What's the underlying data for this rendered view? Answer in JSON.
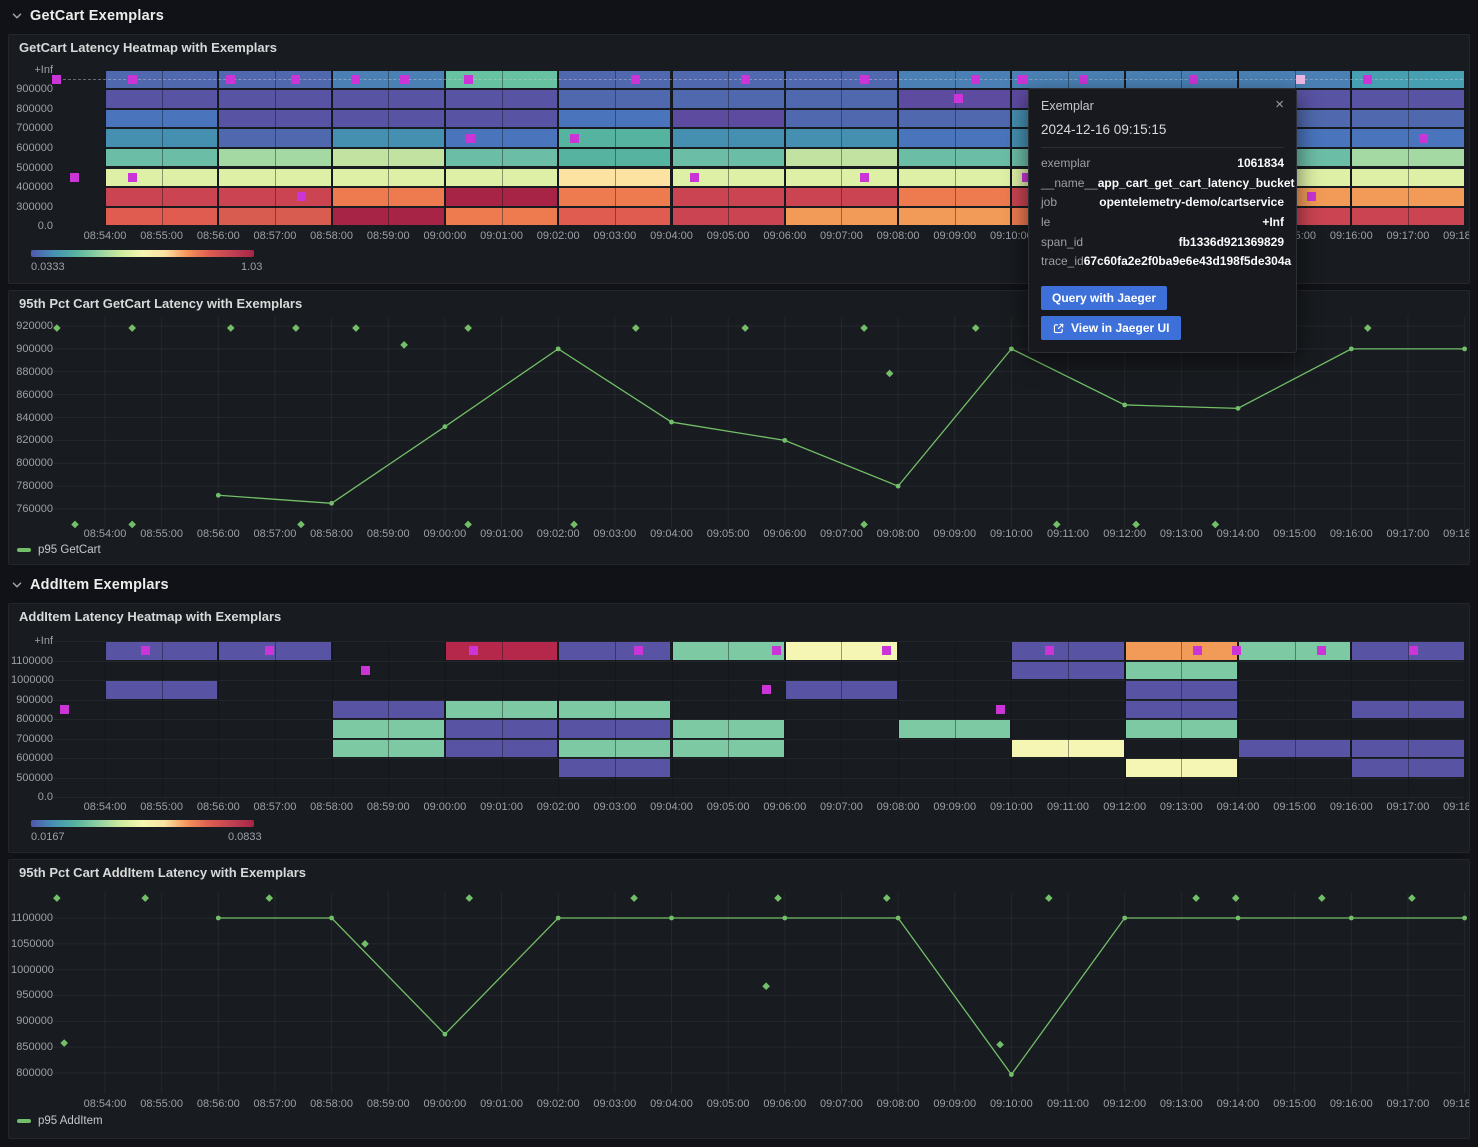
{
  "sections": [
    {
      "title": "GetCart Exemplars"
    },
    {
      "title": "AddItem Exemplars"
    }
  ],
  "time_labels": [
    "08:54:00",
    "08:55:00",
    "08:56:00",
    "08:57:00",
    "08:58:00",
    "08:59:00",
    "09:00:00",
    "09:01:00",
    "09:02:00",
    "09:03:00",
    "09:04:00",
    "09:05:00",
    "09:06:00",
    "09:07:00",
    "09:08:00",
    "09:09:00",
    "09:10:00",
    "09:11:00",
    "09:12:00",
    "09:13:00",
    "09:14:00",
    "09:15:00",
    "09:16:00",
    "09:17:00",
    "09:18:00"
  ],
  "palette": {
    "SB": "#5069ae",
    "BT": "#4a80b4",
    "ST": "#4a74bc",
    "TB": "#458fb0",
    "TE": "#47a0b2",
    "T2": "#56b39f",
    "SG": "#6cbda6",
    "GN": "#66c2a0",
    "S2": "#7dc9a4",
    "LG": "#a5d9a3",
    "YG": "#c2e2a2",
    "PY": "#ddf0a6",
    "P2": "#f6f6b4",
    "PC": "#fce3a2",
    "O3": "#f29a57",
    "OR": "#ee7a50",
    "O2": "#e05c50",
    "R2": "#d95c50",
    "RD": "#ca4452",
    "CR": "#a82446",
    "CA": "#b5284b",
    "PU": "#5853a3",
    "PD": "#5d4ba0"
  },
  "exemplar_color": "#cb35d8",
  "exemplar_highlight_color": "#eab9e4",
  "line_color": "#73bf69",
  "heatmap_getcart": {
    "title": "GetCart Latency Heatmap with Exemplars",
    "y_labels": [
      "+Inf",
      "900000",
      "800000",
      "700000",
      "600000",
      "500000",
      "400000",
      "300000",
      "0.0"
    ],
    "colorbar": {
      "min": "0.0333",
      "max": "1.03"
    },
    "grid": [
      [
        "SB",
        "SB",
        "BT",
        "GN",
        "SB",
        "SB",
        "SB",
        "BT",
        "BT",
        "BT",
        "BT",
        "TE"
      ],
      [
        "PU",
        "PU",
        "PU",
        "PU",
        "SB",
        "SB",
        "SB",
        "PD",
        "PD",
        "SB",
        "PU",
        "PU"
      ],
      [
        "ST",
        "PU",
        "PU",
        "PU",
        "ST",
        "PD",
        "SB",
        "SB",
        "TB",
        "PU",
        "SB",
        "SB"
      ],
      [
        "TB",
        "SB",
        "TB",
        "ST",
        "T2",
        "TB",
        "TB",
        "ST",
        "TB",
        "TB",
        "ST",
        "ST"
      ],
      [
        "SG",
        "LG",
        "YG",
        "SG",
        "T2",
        "SG",
        "YG",
        "SG",
        "SG",
        "SG",
        "SG",
        "LG"
      ],
      [
        "PY",
        "PY",
        "PY",
        "PY",
        "PC",
        "PY",
        "PY",
        "PY",
        "PY",
        "PY",
        "PY",
        "PY"
      ],
      [
        "RD",
        "RD",
        "OR",
        "CR",
        "OR",
        "RD",
        "RD",
        "OR",
        "RD",
        "OR",
        "O3",
        "O3"
      ],
      [
        "O2",
        "R2",
        "CR",
        "OR",
        "O2",
        "RD",
        "O3",
        "O3",
        "OR",
        "RD",
        "RD",
        "RD"
      ]
    ],
    "exemplars": [
      {
        "t": -0.85,
        "r": 0
      },
      {
        "t": 0.48,
        "r": 0
      },
      {
        "t": 2.22,
        "r": 0
      },
      {
        "t": 3.37,
        "r": 0
      },
      {
        "t": 4.43,
        "r": 0
      },
      {
        "t": 5.28,
        "r": 0
      },
      {
        "t": 6.41,
        "r": 0
      },
      {
        "t": 9.37,
        "r": 0
      },
      {
        "t": 11.3,
        "r": 0
      },
      {
        "t": 13.4,
        "r": 0
      },
      {
        "t": 15.37,
        "r": 0
      },
      {
        "t": 16.19,
        "r": 0
      },
      {
        "t": 17.28,
        "r": 0
      },
      {
        "t": 19.22,
        "r": 0
      },
      {
        "t": 22.29,
        "r": 0
      },
      {
        "t": -0.53,
        "r": 5
      },
      {
        "t": 0.48,
        "r": 5
      },
      {
        "t": 3.46,
        "r": 6
      },
      {
        "t": 6.46,
        "r": 3
      },
      {
        "t": 8.28,
        "r": 3
      },
      {
        "t": 10.4,
        "r": 5
      },
      {
        "t": 13.4,
        "r": 5
      },
      {
        "t": 15.07,
        "r": 1
      },
      {
        "t": 16.26,
        "r": 5
      },
      {
        "t": 21.3,
        "r": 6
      },
      {
        "t": 23.28,
        "r": 3
      }
    ],
    "highlighted_exemplar": {
      "t": 21.11,
      "r": 0
    }
  },
  "latency_getcart": {
    "title": "95th Pct Cart GetCart Latency with Exemplars",
    "legend": "p95 GetCart",
    "y_ticks": [
      "920000",
      "900000",
      "880000",
      "860000",
      "840000",
      "820000",
      "800000",
      "780000",
      "760000"
    ],
    "values": [
      772000,
      765000,
      832000,
      900000,
      836000,
      820000,
      780000,
      900000,
      851000,
      848000,
      900000,
      900000
    ],
    "diamonds": [
      {
        "t": -0.85,
        "v": 918200
      },
      {
        "t": 0.48,
        "v": 918200
      },
      {
        "t": 2.22,
        "v": 918200
      },
      {
        "t": 3.37,
        "v": 918200
      },
      {
        "t": 4.43,
        "v": 918200
      },
      {
        "t": 6.41,
        "v": 918200
      },
      {
        "t": 9.37,
        "v": 918200
      },
      {
        "t": 11.3,
        "v": 918200
      },
      {
        "t": 13.4,
        "v": 918200
      },
      {
        "t": 15.37,
        "v": 918200
      },
      {
        "t": 22.29,
        "v": 918200
      },
      {
        "t": 5.28,
        "v": 903500
      },
      {
        "t": 13.85,
        "v": 878500
      },
      {
        "t": -0.53,
        "v": 746500
      },
      {
        "t": 0.48,
        "v": 746500
      },
      {
        "t": 3.46,
        "v": 746500
      },
      {
        "t": 6.41,
        "v": 746500
      },
      {
        "t": 8.28,
        "v": 746500
      },
      {
        "t": 13.4,
        "v": 746500
      },
      {
        "t": 16.8,
        "v": 746500
      },
      {
        "t": 18.2,
        "v": 746500
      },
      {
        "t": 19.6,
        "v": 746500
      }
    ]
  },
  "heatmap_additem": {
    "title": "AddItem Latency Heatmap with Exemplars",
    "y_labels": [
      "+Inf",
      "1100000",
      "1000000",
      "900000",
      "800000",
      "700000",
      "600000",
      "500000",
      "0.0"
    ],
    "colorbar": {
      "min": "0.0167",
      "max": "0.0833"
    },
    "cells": [
      {
        "r": 0,
        "c": 0,
        "k": "PU"
      },
      {
        "r": 0,
        "c": 1,
        "k": "PU"
      },
      {
        "r": 0,
        "c": 3,
        "k": "CA"
      },
      {
        "r": 0,
        "c": 4,
        "k": "PU"
      },
      {
        "r": 0,
        "c": 5,
        "k": "S2"
      },
      {
        "r": 0,
        "c": 6,
        "k": "P2"
      },
      {
        "r": 0,
        "c": 8,
        "k": "PU"
      },
      {
        "r": 0,
        "c": 9,
        "k": "O3"
      },
      {
        "r": 0,
        "c": 10,
        "k": "S2"
      },
      {
        "r": 0,
        "c": 11,
        "k": "PU"
      },
      {
        "r": 1,
        "c": 8,
        "k": "PU"
      },
      {
        "r": 1,
        "c": 9,
        "k": "S2"
      },
      {
        "r": 2,
        "c": 0,
        "k": "PU"
      },
      {
        "r": 2,
        "c": 6,
        "k": "PU"
      },
      {
        "r": 2,
        "c": 9,
        "k": "PU"
      },
      {
        "r": 3,
        "c": 2,
        "k": "PU"
      },
      {
        "r": 3,
        "c": 3,
        "k": "S2"
      },
      {
        "r": 3,
        "c": 4,
        "k": "S2"
      },
      {
        "r": 3,
        "c": 9,
        "k": "PU"
      },
      {
        "r": 3,
        "c": 11,
        "k": "PU"
      },
      {
        "r": 4,
        "c": 2,
        "k": "S2"
      },
      {
        "r": 4,
        "c": 3,
        "k": "PU"
      },
      {
        "r": 4,
        "c": 4,
        "k": "PU"
      },
      {
        "r": 4,
        "c": 5,
        "k": "S2"
      },
      {
        "r": 4,
        "c": 7,
        "k": "S2"
      },
      {
        "r": 4,
        "c": 9,
        "k": "S2"
      },
      {
        "r": 5,
        "c": 2,
        "k": "S2"
      },
      {
        "r": 5,
        "c": 3,
        "k": "PU"
      },
      {
        "r": 5,
        "c": 4,
        "k": "S2"
      },
      {
        "r": 5,
        "c": 5,
        "k": "S2"
      },
      {
        "r": 5,
        "c": 8,
        "k": "P2"
      },
      {
        "r": 5,
        "c": 10,
        "k": "PU"
      },
      {
        "r": 5,
        "c": 11,
        "k": "PU"
      },
      {
        "r": 6,
        "c": 4,
        "k": "PU"
      },
      {
        "r": 6,
        "c": 9,
        "k": "P2"
      },
      {
        "r": 6,
        "c": 11,
        "k": "PU"
      }
    ],
    "exemplars": [
      {
        "t": 0.71,
        "r": 0
      },
      {
        "t": 2.9,
        "r": 0
      },
      {
        "t": 6.5,
        "r": 0
      },
      {
        "t": 9.42,
        "r": 0
      },
      {
        "t": 11.86,
        "r": 0
      },
      {
        "t": 13.8,
        "r": 0
      },
      {
        "t": 16.68,
        "r": 0
      },
      {
        "t": 19.28,
        "r": 0
      },
      {
        "t": 19.98,
        "r": 0
      },
      {
        "t": 21.48,
        "r": 0
      },
      {
        "t": 23.1,
        "r": 0
      },
      {
        "t": -0.72,
        "r": 3
      },
      {
        "t": 4.59,
        "r": 1
      },
      {
        "t": 11.68,
        "r": 2
      },
      {
        "t": 15.8,
        "r": 3
      }
    ]
  },
  "latency_additem": {
    "title": "95th Pct Cart AddItem Latency with Exemplars",
    "legend": "p95 AddItem",
    "y_ticks": [
      "1100000",
      "1050000",
      "1000000",
      "950000",
      "900000",
      "850000",
      "800000"
    ],
    "values": [
      1100000,
      1100000,
      875000,
      1100000,
      1100000,
      1100000,
      1100000,
      797000,
      1100000,
      1100000,
      1100000,
      1100000
    ],
    "diamonds": [
      {
        "t": -0.85,
        "v": 1138500
      },
      {
        "t": 0.71,
        "v": 1138500
      },
      {
        "t": 2.9,
        "v": 1138500
      },
      {
        "t": 6.43,
        "v": 1138500
      },
      {
        "t": 9.34,
        "v": 1138500
      },
      {
        "t": 11.88,
        "v": 1138500
      },
      {
        "t": 13.8,
        "v": 1138500
      },
      {
        "t": 16.66,
        "v": 1138500
      },
      {
        "t": 19.26,
        "v": 1138500
      },
      {
        "t": 19.96,
        "v": 1138500
      },
      {
        "t": 21.48,
        "v": 1138500
      },
      {
        "t": 23.07,
        "v": 1138500
      },
      {
        "t": -0.72,
        "v": 858000
      },
      {
        "t": 4.59,
        "v": 1050000
      },
      {
        "t": 11.67,
        "v": 968000
      },
      {
        "t": 15.8,
        "v": 855000
      }
    ]
  },
  "tooltip": {
    "title": "Exemplar",
    "close": "×",
    "timestamp": "2024-12-16 09:15:15",
    "rows": [
      {
        "label": "exemplar",
        "value": "1061834"
      },
      {
        "label": "__name__",
        "value": "app_cart_get_cart_latency_bucket"
      },
      {
        "label": "job",
        "value": "opentelemetry-demo/cartservice"
      },
      {
        "label": "le",
        "value": "+Inf"
      },
      {
        "label": "span_id",
        "value": "fb1336d921369829"
      },
      {
        "label": "trace_id",
        "value": "67c60fa2e2f0ba9e6e43d198f5de304a"
      }
    ],
    "buttons": [
      {
        "label": "Query with Jaeger",
        "icon": "none"
      },
      {
        "label": "View in Jaeger UI",
        "icon": "external-link"
      }
    ]
  },
  "chart_data": [
    {
      "type": "heatmap",
      "title": "GetCart Latency Heatmap with Exemplars",
      "x_range": [
        "08:54:00",
        "09:18:00"
      ],
      "column_width_min": 2,
      "bucket_bounds": [
        "0.0",
        "300000",
        "400000",
        "500000",
        "600000",
        "700000",
        "800000",
        "900000",
        "+Inf"
      ],
      "color_scale_min": 0.0333,
      "color_scale_max": 1.03
    },
    {
      "type": "line",
      "title": "95th Pct Cart GetCart Latency with Exemplars",
      "series": [
        {
          "name": "p95 GetCart",
          "values": [
            772000,
            765000,
            832000,
            900000,
            836000,
            820000,
            780000,
            900000,
            851000,
            848000,
            900000,
            900000
          ]
        }
      ],
      "categories": [
        "08:56",
        "08:58",
        "09:00",
        "09:02",
        "09:04",
        "09:06",
        "09:08",
        "09:10",
        "09:12",
        "09:14",
        "09:16",
        "09:18"
      ],
      "ylim": [
        760000,
        920000
      ],
      "grid": true,
      "legend_position": "bottom-left"
    },
    {
      "type": "heatmap",
      "title": "AddItem Latency Heatmap with Exemplars",
      "x_range": [
        "08:54:00",
        "09:18:00"
      ],
      "column_width_min": 2,
      "bucket_bounds": [
        "0.0",
        "500000",
        "600000",
        "700000",
        "800000",
        "900000",
        "1000000",
        "1100000",
        "+Inf"
      ],
      "color_scale_min": 0.0167,
      "color_scale_max": 0.0833
    },
    {
      "type": "line",
      "title": "95th Pct Cart AddItem Latency with Exemplars",
      "series": [
        {
          "name": "p95 AddItem",
          "values": [
            1100000,
            1100000,
            875000,
            1100000,
            1100000,
            1100000,
            1100000,
            797000,
            1100000,
            1100000,
            1100000,
            1100000
          ]
        }
      ],
      "categories": [
        "08:56",
        "08:58",
        "09:00",
        "09:02",
        "09:04",
        "09:06",
        "09:08",
        "09:10",
        "09:12",
        "09:14",
        "09:16",
        "09:18"
      ],
      "ylim": [
        800000,
        1100000
      ],
      "grid": true,
      "legend_position": "bottom-left"
    }
  ]
}
